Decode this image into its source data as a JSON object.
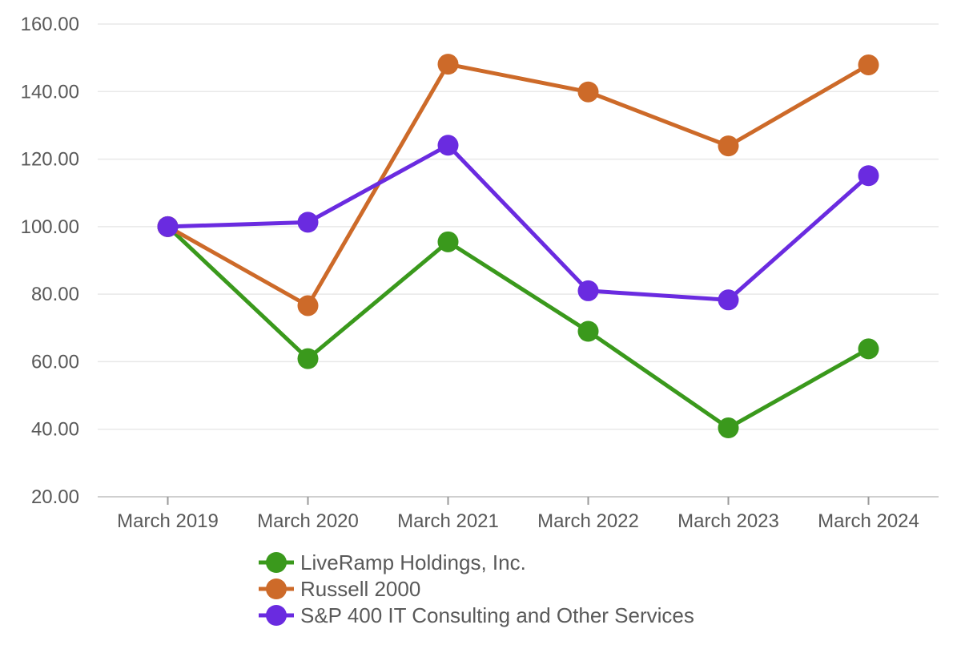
{
  "chart_data": {
    "type": "line",
    "title": "",
    "xlabel": "",
    "ylabel": "",
    "categories": [
      "March 2019",
      "March 2020",
      "March 2021",
      "March 2022",
      "March 2023",
      "March 2024"
    ],
    "series": [
      {
        "name": "LiveRamp Holdings, Inc.",
        "color": "#3a991c",
        "values": [
          100.0,
          60.9,
          95.5,
          69.0,
          40.4,
          63.8
        ]
      },
      {
        "name": "Russell 2000",
        "color": "#cd6a29",
        "values": [
          100.0,
          76.6,
          148.1,
          139.9,
          123.9,
          147.9
        ]
      },
      {
        "name": "S&P 400 IT Consulting and Other Services",
        "color": "#6a2be0",
        "values": [
          100.0,
          101.3,
          124.1,
          81.0,
          78.3,
          115.1
        ]
      }
    ],
    "y_axis": {
      "min": 20,
      "max": 160,
      "step": 20,
      "tick_labels": [
        "20.00",
        "40.00",
        "60.00",
        "80.00",
        "100.00",
        "120.00",
        "140.00",
        "160.00"
      ]
    },
    "x_axis": {
      "tick_labels": [
        "March 2019",
        "March 2020",
        "March 2021",
        "March 2022",
        "March 2023",
        "March 2024"
      ]
    },
    "grid": "horizontal gridlines",
    "legend_position": "bottom-left",
    "marker": "circle",
    "colors": {
      "background": "#ffffff",
      "grid_line": "#e8e8e8",
      "axis_line": "#cfcfcf",
      "tick_mark": "#9a9a9a",
      "label_text": "#595959"
    }
  }
}
